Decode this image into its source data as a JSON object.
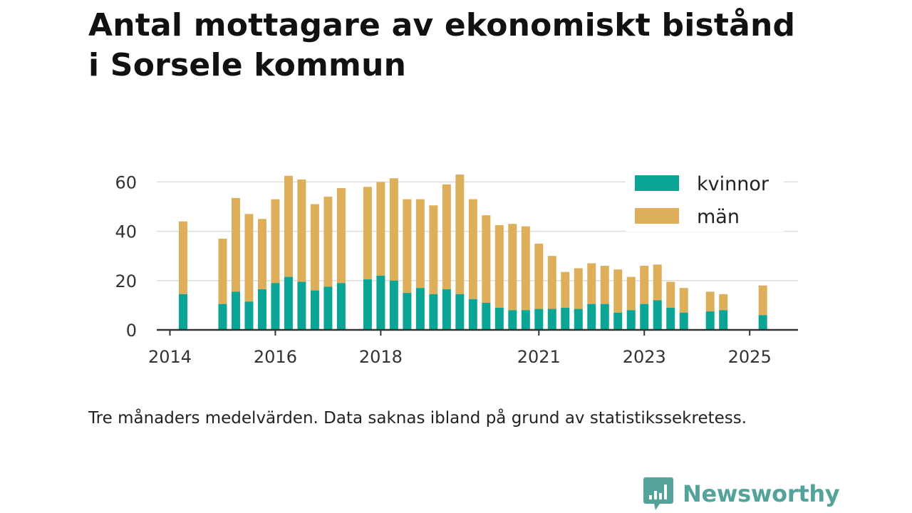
{
  "header": {
    "title_line1": "Antal mottagare av ekonomiskt bistånd",
    "title_line2": "i Sorsele kommun"
  },
  "footer": {
    "note": "Tre månaders medelvärden. Data saknas ibland på grund av statistikssekretess.",
    "brand": "Newsworthy"
  },
  "colors": {
    "kvinnor": "#0aa595",
    "man": "#deaf5a",
    "grid": "#dddddd",
    "axis": "#333333",
    "brand": "#54a39b"
  },
  "chart_data": {
    "type": "bar",
    "stacked": true,
    "xlim": [
      "2013-10",
      "2025-12"
    ],
    "ylim": [
      0,
      63
    ],
    "yticks": [
      0,
      20,
      40,
      60
    ],
    "xticks": [
      {
        "label": "2014",
        "value": "2014-01"
      },
      {
        "label": "2016",
        "value": "2016-01"
      },
      {
        "label": "2018",
        "value": "2018-01"
      },
      {
        "label": "2021",
        "value": "2021-01"
      },
      {
        "label": "2023",
        "value": "2023-01"
      },
      {
        "label": "2025",
        "value": "2025-01"
      }
    ],
    "grid": true,
    "legend_position": "top-right",
    "series": [
      {
        "name": "kvinnor",
        "color": "#0aa595",
        "values": [
          14.5,
          10.5,
          15.5,
          11.5,
          16.5,
          19,
          21.5,
          19.5,
          16,
          17.5,
          19,
          20.5,
          22,
          20,
          15,
          17,
          14.5,
          16.5,
          14.5,
          12.5,
          11,
          9,
          8,
          8,
          8.5,
          8.5,
          9,
          8.5,
          10.5,
          10.5,
          7,
          8,
          10.5,
          12,
          9,
          7,
          7.5,
          8,
          6
        ]
      },
      {
        "name": "män",
        "color": "#deaf5a",
        "values": [
          29.5,
          26.5,
          38,
          35.5,
          28.5,
          34,
          41,
          41.5,
          35,
          36.5,
          38.5,
          37.5,
          38,
          41.5,
          38,
          36,
          36,
          42.5,
          48.5,
          40.5,
          35.5,
          33.5,
          35,
          34,
          26.5,
          21.5,
          14.5,
          16.5,
          16.5,
          15.5,
          17.5,
          13.5,
          15.5,
          14.5,
          10.5,
          10,
          8,
          6.5,
          12
        ]
      }
    ],
    "dates": [
      "2014-04",
      "2015-01",
      "2015-04",
      "2015-07",
      "2015-10",
      "2016-01",
      "2016-04",
      "2016-07",
      "2016-10",
      "2017-01",
      "2017-04",
      "2017-10",
      "2018-01",
      "2018-04",
      "2018-07",
      "2018-10",
      "2019-01",
      "2019-04",
      "2019-07",
      "2019-10",
      "2020-01",
      "2020-04",
      "2020-07",
      "2020-10",
      "2021-01",
      "2021-04",
      "2021-07",
      "2021-10",
      "2022-01",
      "2022-04",
      "2022-07",
      "2022-10",
      "2023-01",
      "2023-04",
      "2023-07",
      "2023-10",
      "2024-04",
      "2024-07",
      "2025-04"
    ]
  }
}
